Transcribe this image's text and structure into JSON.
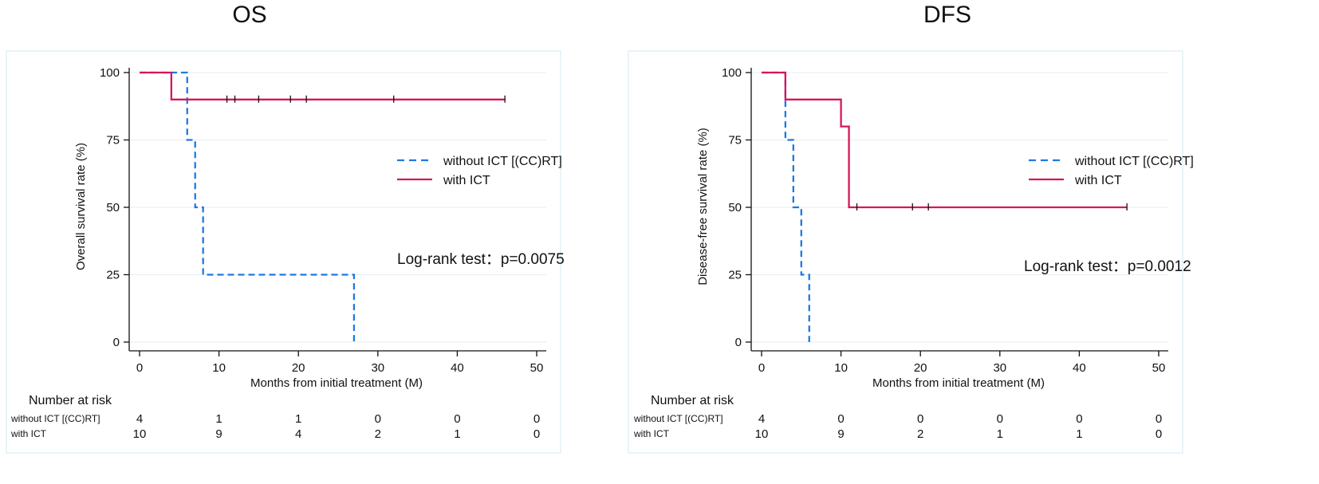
{
  "colors": {
    "without": "#1f78e4",
    "with": "#d6165d",
    "axis": "#111111",
    "grid": "#e6eef2",
    "frame": "#d9ecf2",
    "tick_mark": "#111111"
  },
  "chart_data": [
    {
      "type": "line",
      "title": "OS",
      "xlabel": "Months from initial treatment (M)",
      "ylabel": "Overall survival rate (%)",
      "xlim": [
        0,
        50
      ],
      "ylim": [
        0,
        100
      ],
      "x_ticks": [
        0,
        10,
        20,
        30,
        40,
        50
      ],
      "y_ticks": [
        0,
        25,
        50,
        75,
        100
      ],
      "grid": true,
      "legend_position": "right",
      "annotation": "Log-rank test：p=0.0075",
      "series": [
        {
          "name": "without ICT [(CC)RT]",
          "style": "dashed",
          "color_key": "without",
          "x": [
            0,
            6,
            6,
            7,
            7,
            8,
            8,
            27,
            27
          ],
          "y": [
            100,
            100,
            75,
            75,
            50,
            50,
            25,
            25,
            0
          ],
          "censor_x": []
        },
        {
          "name": "with ICT",
          "style": "solid",
          "color_key": "with",
          "x": [
            0,
            4,
            4,
            46
          ],
          "y": [
            100,
            100,
            90,
            90
          ],
          "censor_x": [
            11,
            12,
            15,
            19,
            21,
            32,
            46
          ]
        }
      ],
      "risk_table": {
        "header": "Number at risk",
        "rows": [
          {
            "label": "without ICT [(CC)RT]",
            "values": [
              "4",
              "1",
              "1",
              "0",
              "0",
              "0"
            ]
          },
          {
            "label": "with ICT",
            "values": [
              "10",
              "9",
              "4",
              "2",
              "1",
              "0"
            ]
          }
        ]
      }
    },
    {
      "type": "line",
      "title": "DFS",
      "xlabel": "Months from initial treatment (M)",
      "ylabel": "Disease-free survival rate (%)",
      "xlim": [
        0,
        50
      ],
      "ylim": [
        0,
        100
      ],
      "x_ticks": [
        0,
        10,
        20,
        30,
        40,
        50
      ],
      "y_ticks": [
        0,
        25,
        50,
        75,
        100
      ],
      "grid": true,
      "legend_position": "right",
      "annotation": "Log-rank test：p=0.0012",
      "series": [
        {
          "name": "without ICT [(CC)RT]",
          "style": "dashed",
          "color_key": "without",
          "x": [
            0,
            3,
            3,
            4,
            4,
            5,
            5,
            6,
            6
          ],
          "y": [
            100,
            100,
            75,
            75,
            50,
            50,
            25,
            25,
            0
          ],
          "censor_x": []
        },
        {
          "name": "with ICT",
          "style": "solid",
          "color_key": "with",
          "x": [
            0,
            3,
            3,
            10,
            10,
            11,
            11,
            46
          ],
          "y": [
            100,
            100,
            90,
            90,
            80,
            80,
            50,
            50
          ],
          "censor_x": [
            12,
            19,
            21,
            46
          ]
        }
      ],
      "risk_table": {
        "header": "Number at risk",
        "rows": [
          {
            "label": "without ICT [(CC)RT]",
            "values": [
              "4",
              "0",
              "0",
              "0",
              "0",
              "0"
            ]
          },
          {
            "label": "with ICT",
            "values": [
              "10",
              "9",
              "2",
              "1",
              "1",
              "0"
            ]
          }
        ]
      }
    }
  ]
}
